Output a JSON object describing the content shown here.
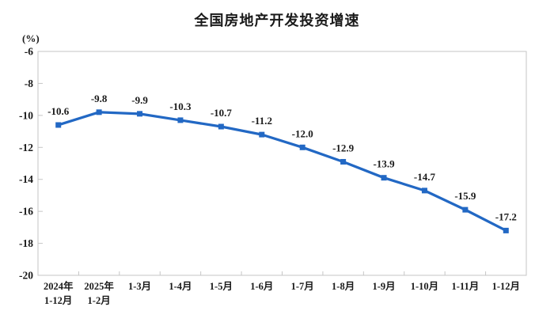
{
  "title": "全国房地产开发投资增速",
  "unit_label": "(%)",
  "chart_data": {
    "type": "line",
    "title": "全国房地产开发投资增速",
    "ylabel": "(%)",
    "xlabel": "",
    "categories": [
      "2024年\n1-12月",
      "2025年\n1-2月",
      "1-3月",
      "1-4月",
      "1-5月",
      "1-6月",
      "1-7月",
      "1-8月",
      "1-9月",
      "1-10月",
      "1-11月",
      "1-12月"
    ],
    "values": [
      -10.6,
      -9.8,
      -9.9,
      -10.3,
      -10.7,
      -11.2,
      -12.0,
      -12.9,
      -13.9,
      -14.7,
      -15.9,
      -17.2
    ],
    "ylim": [
      -20,
      -6
    ],
    "yticks": [
      -6,
      -8,
      -10,
      -12,
      -14,
      -16,
      -18,
      -20
    ],
    "grid": false,
    "legend_position": "none",
    "data_labels": true,
    "marker": "square",
    "colors": {
      "line": "#2268C4",
      "marker": "#2268C4",
      "axis": "#C6C6C6",
      "text": "#1A1A1A",
      "background": "#FFFFFF"
    }
  }
}
